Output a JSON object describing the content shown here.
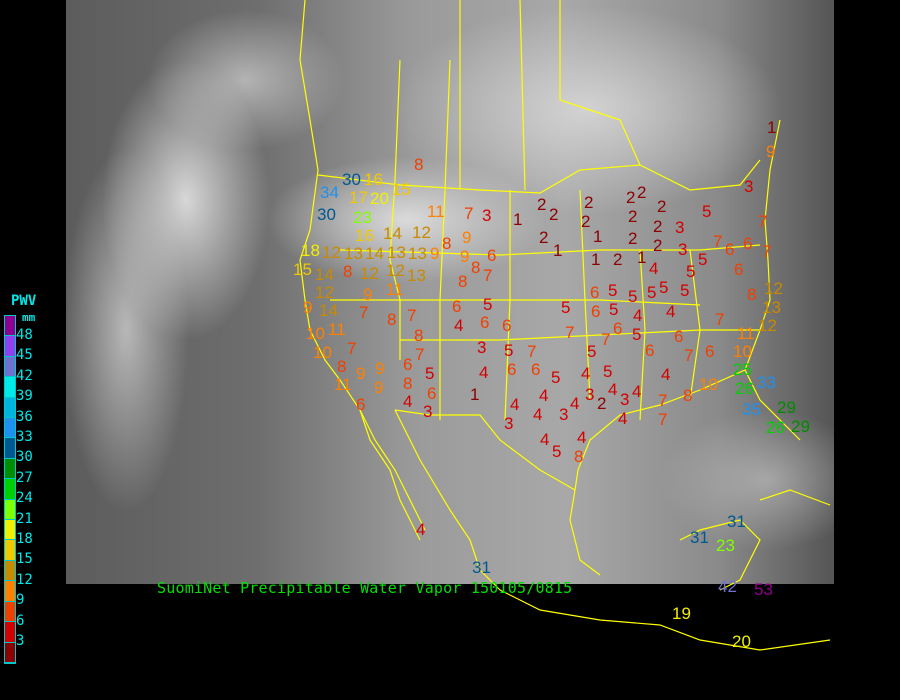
{
  "caption": "SuomiNet Precipitable Water Vapor 150105/0815",
  "legend": {
    "title": "PWV",
    "unit": "mm",
    "labels": [
      "48",
      "45",
      "42",
      "39",
      "36",
      "33",
      "30",
      "27",
      "24",
      "21",
      "18",
      "15",
      "12",
      "9",
      "6",
      "3"
    ],
    "colors": [
      "#900090",
      "#9040f0",
      "#7070d0",
      "#00e8e8",
      "#00b4e0",
      "#2090f0",
      "#005890",
      "#008c00",
      "#00d000",
      "#80ff00",
      "#f0f000",
      "#f0c800",
      "#c88a00",
      "#ff8000",
      "#f04000",
      "#d40000",
      "#8b0000"
    ]
  },
  "boundary_color": "#ffff00",
  "stations": [
    "8",
    "30",
    "34",
    "16",
    "15",
    "17",
    "20",
    "30",
    "23",
    "11",
    "7",
    "3",
    "16",
    "14",
    "12",
    "13",
    "14",
    "13",
    "13",
    "9",
    "8",
    "9",
    "9",
    "6",
    "15",
    "18",
    "12",
    "8",
    "12",
    "12",
    "13",
    "11",
    "8",
    "7",
    "8",
    "14",
    "12",
    "9",
    "14",
    "11",
    "9",
    "7",
    "8",
    "7",
    "6",
    "5",
    "4",
    "6",
    "6",
    "10",
    "10",
    "7",
    "8",
    "9",
    "9",
    "11",
    "9",
    "6",
    "8",
    "5",
    "6",
    "4",
    "3",
    "6",
    "8",
    "7",
    "3",
    "4",
    "1",
    "1",
    "2",
    "2",
    "2",
    "1",
    "2",
    "2",
    "1",
    "1",
    "2",
    "2",
    "2",
    "2",
    "2",
    "2",
    "2",
    "2",
    "3",
    "3",
    "1",
    "4",
    "5",
    "5",
    "5",
    "5",
    "7",
    "6",
    "6",
    "7",
    "6",
    "5",
    "5",
    "3",
    "7",
    "4",
    "5",
    "6",
    "6",
    "5",
    "5",
    "5",
    "4",
    "6",
    "5",
    "7",
    "7",
    "5",
    "6",
    "6",
    "7",
    "6",
    "7",
    "8",
    "12",
    "13",
    "12",
    "11",
    "10",
    "5",
    "7",
    "6",
    "6",
    "5",
    "4",
    "5",
    "4",
    "4",
    "3",
    "4",
    "3",
    "4",
    "3",
    "2",
    "4",
    "3",
    "4",
    "4",
    "4",
    "4",
    "5",
    "4",
    "8",
    "7",
    "7",
    "8",
    "10",
    "25",
    "26",
    "33",
    "35",
    "29",
    "26",
    "29",
    "4",
    "31",
    "31",
    "31",
    "23",
    "42",
    "53",
    "19",
    "20",
    "1",
    "9"
  ]
}
